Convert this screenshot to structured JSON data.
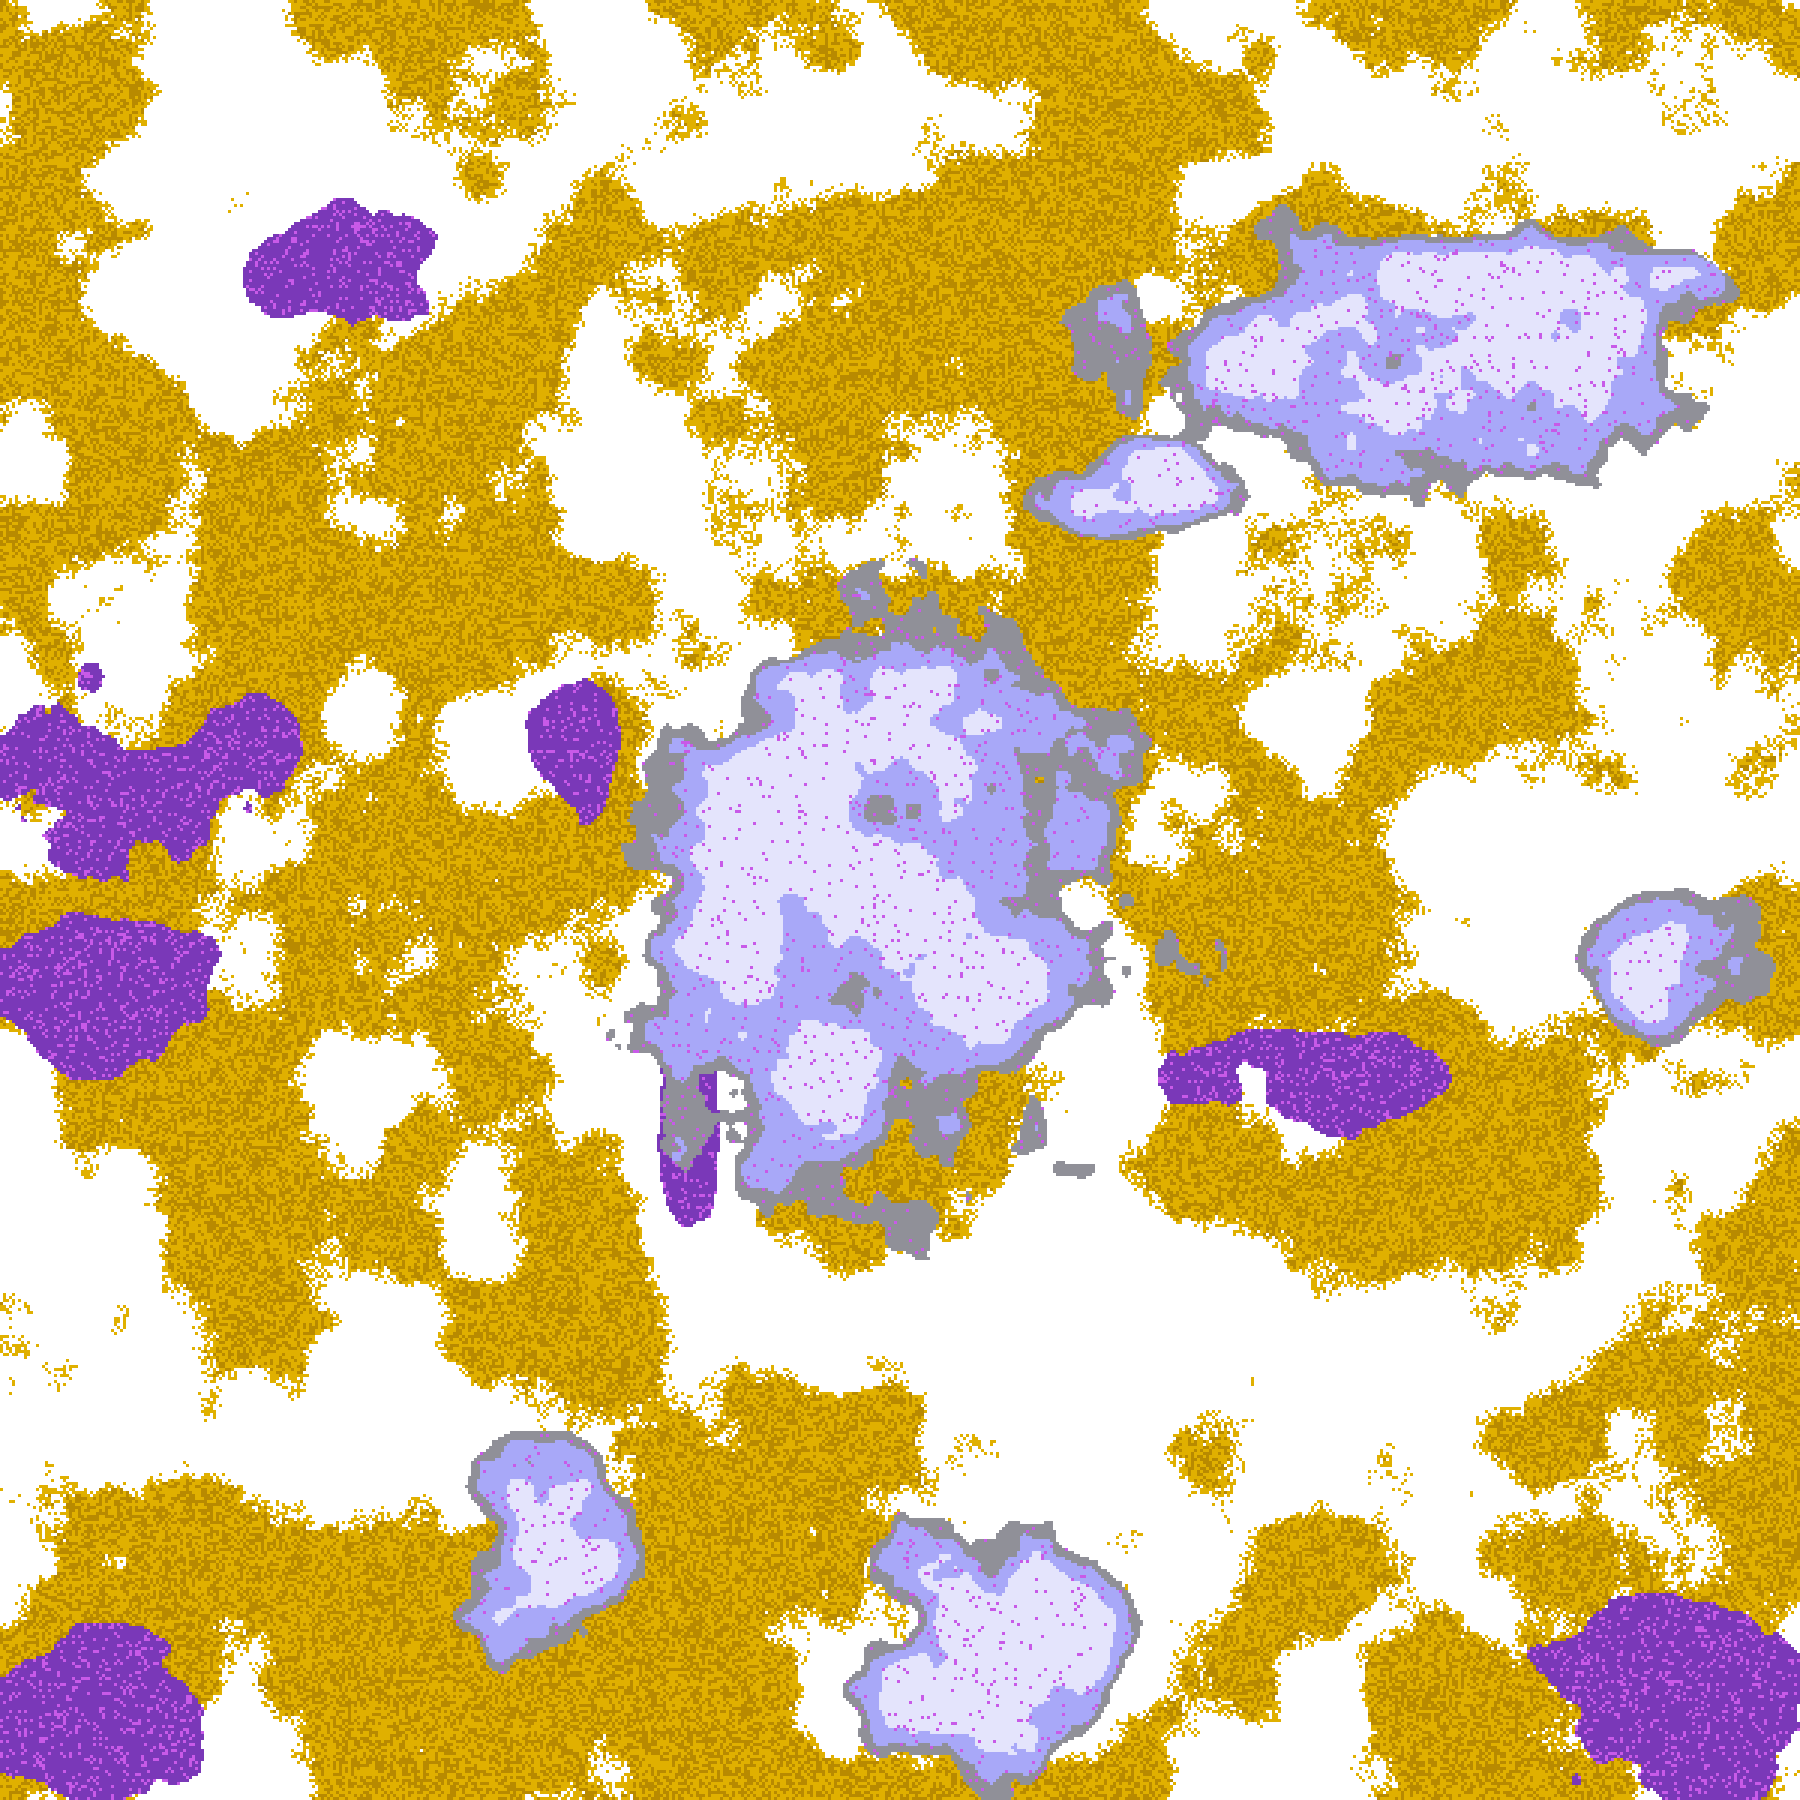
{
  "palette": {
    "clear": "#ffffff",
    "low_cloud_light": "#e0b000",
    "low_cloud_dark": "#b88a00",
    "mid_cloud": "#7a38b8",
    "mid_cloud_bright": "#c85ae8",
    "cirrus_gray": "#909098",
    "cirrus_lavender": "#a8a8f8",
    "deep_cloud": "#e4e4fc"
  }
}
